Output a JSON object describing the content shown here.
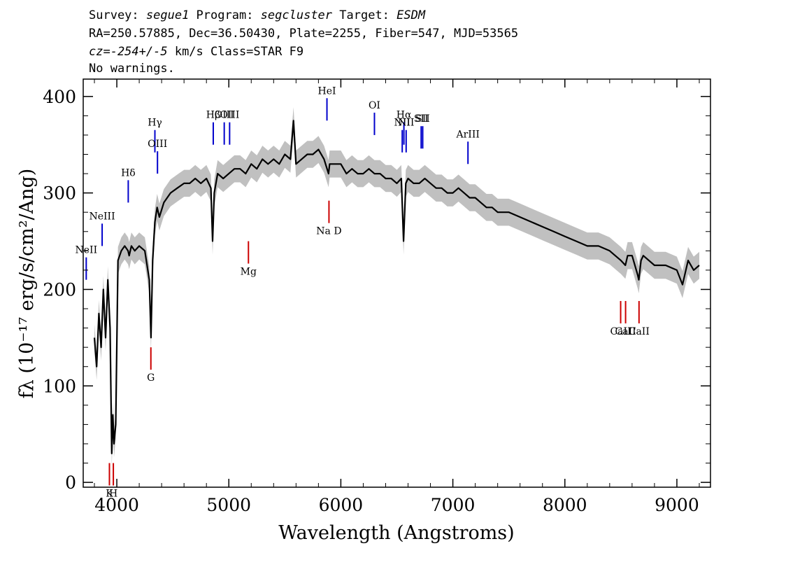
{
  "header": {
    "line1": {
      "a": "Survey: ",
      "survey": "segue1",
      "b": " Program: ",
      "program": "segcluster",
      "c": " Target: ",
      "target": "ESDM"
    },
    "line2": "RA=250.57885, Dec=36.50430, Plate=2255, Fiber=547, MJD=53565",
    "line3": {
      "cz": "cz=-254+/-5",
      "rest": " km/s Class=STAR F9"
    },
    "line4": "No warnings."
  },
  "chart_data": {
    "type": "line",
    "title": "",
    "xlabel": "Wavelength (Angstroms)",
    "ylabel": "fλ (10⁻¹⁷ erg/s/cm²/Ang)",
    "xlim": [
      3700,
      9300
    ],
    "ylim": [
      -5,
      418
    ],
    "x_ticks": [
      4000,
      5000,
      6000,
      7000,
      8000,
      9000
    ],
    "y_ticks": [
      0,
      100,
      200,
      300,
      400
    ],
    "grid": false,
    "series_color": "#000000",
    "error_band_color": "#c0c0c0",
    "emission_color": "#0000cc",
    "absorption_color": "#cc0000",
    "spectrum": {
      "x": [
        3800,
        3820,
        3840,
        3860,
        3880,
        3900,
        3920,
        3940,
        3955,
        3965,
        3975,
        3990,
        4010,
        4040,
        4070,
        4100,
        4110,
        4130,
        4160,
        4200,
        4250,
        4290,
        4305,
        4320,
        4340,
        4360,
        4380,
        4420,
        4480,
        4540,
        4600,
        4650,
        4700,
        4750,
        4800,
        4840,
        4855,
        4870,
        4900,
        4950,
        5000,
        5050,
        5100,
        5150,
        5200,
        5250,
        5300,
        5350,
        5400,
        5450,
        5500,
        5550,
        5577,
        5600,
        5650,
        5700,
        5750,
        5800,
        5850,
        5890,
        5900,
        5950,
        6000,
        6050,
        6100,
        6150,
        6200,
        6250,
        6300,
        6350,
        6400,
        6450,
        6500,
        6540,
        6560,
        6580,
        6600,
        6650,
        6700,
        6750,
        6800,
        6850,
        6900,
        6950,
        7000,
        7050,
        7100,
        7150,
        7200,
        7250,
        7300,
        7350,
        7400,
        7500,
        7600,
        7700,
        7800,
        7900,
        8000,
        8100,
        8200,
        8300,
        8400,
        8450,
        8500,
        8540,
        8560,
        8600,
        8650,
        8660,
        8680,
        8700,
        8800,
        8900,
        9000,
        9050,
        9100,
        9150,
        9200
      ],
      "y": [
        150,
        120,
        175,
        140,
        200,
        150,
        210,
        160,
        30,
        70,
        40,
        60,
        230,
        240,
        245,
        240,
        235,
        245,
        240,
        245,
        240,
        210,
        150,
        230,
        270,
        285,
        275,
        290,
        300,
        305,
        310,
        310,
        315,
        310,
        315,
        305,
        250,
        300,
        320,
        315,
        320,
        325,
        325,
        320,
        330,
        325,
        335,
        330,
        335,
        330,
        340,
        335,
        375,
        330,
        335,
        340,
        340,
        345,
        335,
        320,
        330,
        330,
        330,
        320,
        325,
        320,
        320,
        325,
        320,
        320,
        315,
        315,
        310,
        315,
        250,
        310,
        315,
        310,
        310,
        315,
        310,
        305,
        305,
        300,
        300,
        305,
        300,
        295,
        295,
        290,
        285,
        285,
        280,
        280,
        275,
        270,
        265,
        260,
        255,
        250,
        245,
        245,
        240,
        235,
        230,
        225,
        235,
        235,
        215,
        210,
        230,
        235,
        225,
        225,
        220,
        205,
        230,
        220,
        225
      ]
    },
    "emission_lines": [
      {
        "label": "NeII",
        "x": 3727,
        "y": 210
      },
      {
        "label": "NeIII",
        "x": 3869,
        "y": 245
      },
      {
        "label": "Hδ",
        "x": 4102,
        "y": 290
      },
      {
        "label": "Hγ",
        "x": 4340,
        "y": 342
      },
      {
        "label": "OIII",
        "x": 4363,
        "y": 320
      },
      {
        "label": "Hβ",
        "x": 4861,
        "y": 350
      },
      {
        "label": "OIII",
        "x": 4959,
        "y": 350
      },
      {
        "label": "OIII",
        "x": 5007,
        "y": 350
      },
      {
        "label": "HeI",
        "x": 5876,
        "y": 375
      },
      {
        "label": "OI",
        "x": 6300,
        "y": 360
      },
      {
        "label": "NII",
        "x": 6548,
        "y": 342
      },
      {
        "label": "Hα",
        "x": 6563,
        "y": 350
      },
      {
        "label": "NII",
        "x": 6583,
        "y": 342
      },
      {
        "label": "SII",
        "x": 6717,
        "y": 346
      },
      {
        "label": "SII",
        "x": 6731,
        "y": 346
      },
      {
        "label": "ArIII",
        "x": 7135,
        "y": 330
      }
    ],
    "absorption_lines": [
      {
        "label": "K",
        "x": 3934,
        "y": 20
      },
      {
        "label": "H",
        "x": 3969,
        "y": 20
      },
      {
        "label": "G",
        "x": 4304,
        "y": 140
      },
      {
        "label": "Mg",
        "x": 5175,
        "y": 250
      },
      {
        "label": "Na D",
        "x": 5894,
        "y": 292
      },
      {
        "label": "CaII",
        "x": 8498,
        "y": 188
      },
      {
        "label": "CaII",
        "x": 8542,
        "y": 188
      },
      {
        "label": "CaII",
        "x": 8662,
        "y": 188
      }
    ]
  }
}
